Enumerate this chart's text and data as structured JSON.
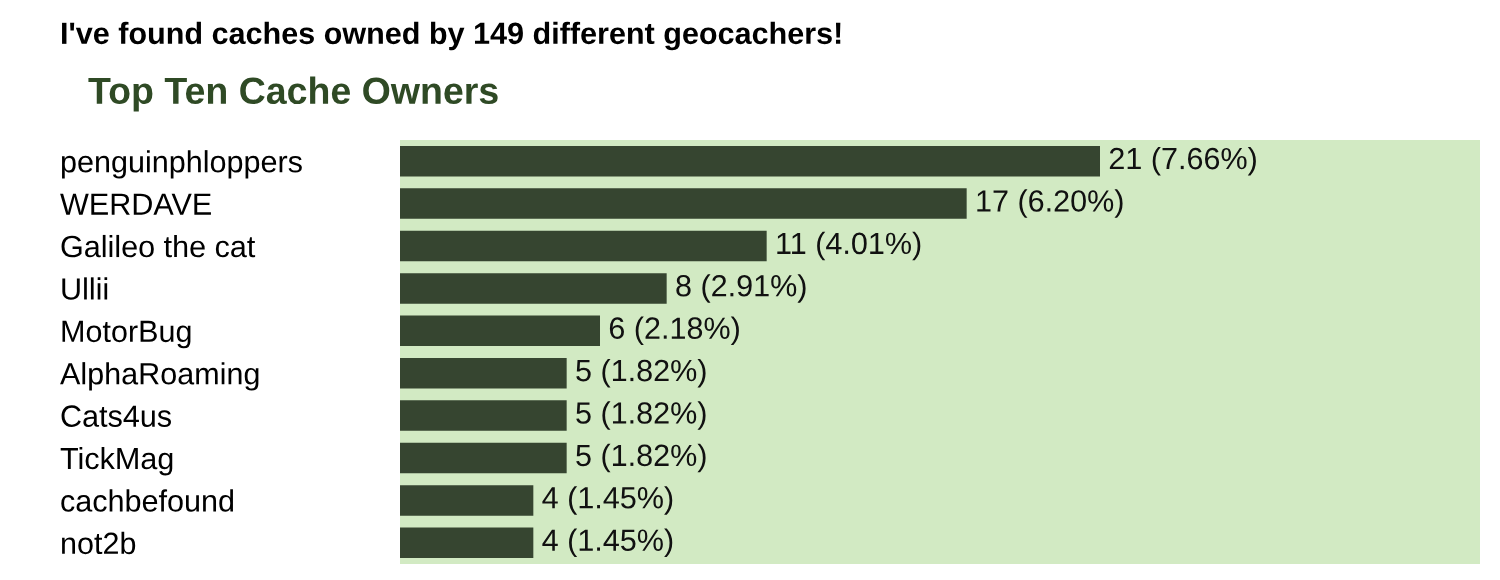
{
  "chart_data": {
    "type": "bar",
    "orientation": "horizontal",
    "title": "I've found caches owned by 149 different geocachers!",
    "subtitle": "Top Ten Cache Owners",
    "categories": [
      "penguinphloppers",
      "WERDAVE",
      "Galileo the cat",
      "Ullii",
      "MotorBug",
      "AlphaRoaming",
      "Cats4us",
      "TickMag",
      "cachbefound",
      "not2b"
    ],
    "values": [
      21,
      17,
      11,
      8,
      6,
      5,
      5,
      5,
      4,
      4
    ],
    "value_labels": [
      "21 (7.66%)",
      "17 (6.20%)",
      "11 (4.01%)",
      "8 (2.91%)",
      "6 (2.18%)",
      "5 (1.82%)",
      "5 (1.82%)",
      "5 (1.82%)",
      "4 (1.45%)",
      "4 (1.45%)"
    ],
    "color": "#364530",
    "tick_labels": "y",
    "grid": false,
    "legend": false
  }
}
